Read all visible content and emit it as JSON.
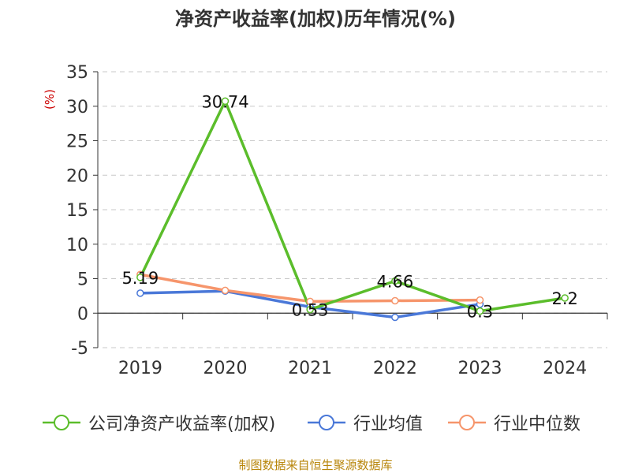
{
  "title": "净资产收益率(加权)历年情况(%)",
  "source": "制图数据来自恒生聚源数据库",
  "colors": {
    "series_roe": "#5bbd2b",
    "series_avg": "#4a78d8",
    "series_median": "#f6956b",
    "ylabel": "#cc0000",
    "grid": "#c8c8c8",
    "axis": "#333333",
    "source": "#b8860b"
  },
  "chart_data": {
    "type": "line",
    "title": "净资产收益率(加权)历年情况(%)",
    "xlabel": "",
    "ylabel": "(%)",
    "categories": [
      "2019",
      "2020",
      "2021",
      "2022",
      "2023",
      "2024"
    ],
    "ylim": [
      -5,
      35
    ],
    "yticks": [
      -5,
      0,
      5,
      10,
      15,
      20,
      25,
      30,
      35
    ],
    "grid": true,
    "legend_position": "bottom",
    "series": [
      {
        "name": "公司净资产收益率(加权)",
        "values": [
          5.19,
          30.74,
          0.53,
          4.66,
          0.3,
          2.2
        ],
        "labels": [
          "5.19",
          "30.74",
          "0.53",
          "4.66",
          "0.3",
          "2.2"
        ],
        "color": "#5bbd2b"
      },
      {
        "name": "行业均值",
        "values": [
          2.9,
          3.2,
          0.9,
          -0.6,
          1.3,
          null
        ],
        "color": "#4a78d8"
      },
      {
        "name": "行业中位数",
        "values": [
          5.6,
          3.3,
          1.7,
          1.8,
          1.9,
          null
        ],
        "color": "#f6956b"
      }
    ]
  }
}
